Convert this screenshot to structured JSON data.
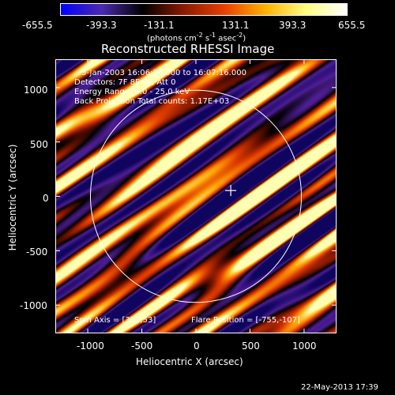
{
  "colorbar": {
    "ticks": [
      "-655.5",
      "-393.3",
      "-131.1",
      "131.1",
      "393.3",
      "655.5"
    ],
    "unit_label_parts": [
      "(photons cm",
      "-2",
      " s",
      "-1",
      " asec",
      "-2",
      ")"
    ],
    "gradient_colors": [
      "#0000ff",
      "#4a2ab0",
      "#000000",
      "#8a1a00",
      "#e84000",
      "#ffb000",
      "#ffff80",
      "#ffffff"
    ]
  },
  "plot": {
    "title": "Reconstructed RHESSI Image",
    "info_lines": [
      "3-Jan-2003 16:06:36.000 to 16:07:16.000",
      "Detectors: 7F 8F 9F, Att 0",
      "Energy Range: 6.0 - 25.0 keV",
      "Back Projection    Total counts: 1.17E+03"
    ],
    "spin_axis": "Spin Axis = [322,53]",
    "flare_position": "Flare Position = [-755,-107]",
    "xlabel": "Heliocentric X (arcsec)",
    "ylabel": "Heliocentric Y (arcsec)",
    "x_ticks": [
      "-1000",
      "-500",
      "0",
      "500",
      "1000"
    ],
    "y_ticks": [
      "1000",
      "500",
      "0",
      "-500",
      "-1000"
    ],
    "x_tick_values": [
      -1000,
      -500,
      0,
      500,
      1000
    ],
    "y_tick_values": [
      1000,
      500,
      0,
      -500,
      -1000
    ],
    "xlim": [
      -1300,
      1300
    ],
    "ylim": [
      -1260,
      1260
    ],
    "limb_radius_arcsec": 975,
    "marker_position": [
      322,
      53
    ],
    "colors": {
      "limb": "#ffffff",
      "background": "#000000"
    }
  },
  "footer": {
    "date": "22-May-2013 17:39"
  }
}
